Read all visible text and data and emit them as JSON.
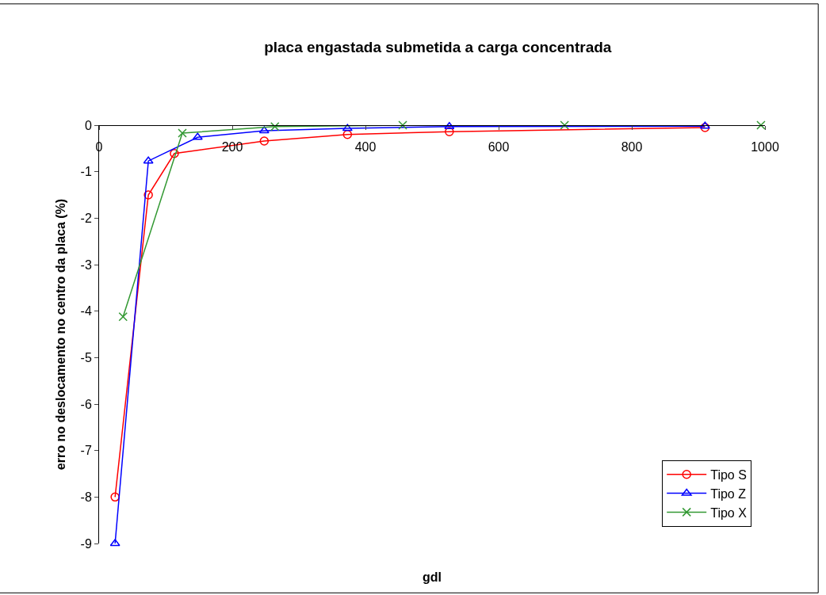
{
  "chart_data": {
    "type": "line",
    "title": "placa engastada submetida a carga concentrada",
    "xlabel": "gdl",
    "ylabel": "erro no deslocamento no centro da placa (%)",
    "xlim": [
      0,
      1000
    ],
    "xticks": [
      0,
      200,
      400,
      600,
      800,
      1000
    ],
    "ylim": [
      -9,
      0
    ],
    "yticks": [
      0,
      -1,
      -2,
      -3,
      -4,
      -5,
      -6,
      -7,
      -8,
      -9
    ],
    "legend": "bottom right",
    "series": [
      {
        "name": "Tipo S",
        "color": "#ff0000",
        "marker": "circle",
        "x": [
          24,
          74,
          113,
          248,
          373,
          526,
          910
        ],
        "values": [
          -8.0,
          -1.5,
          -0.61,
          -0.34,
          -0.2,
          -0.14,
          -0.05
        ]
      },
      {
        "name": "Tipo Z",
        "color": "#0000ff",
        "marker": "triangle",
        "x": [
          24,
          74,
          148,
          248,
          373,
          526,
          910
        ],
        "values": [
          -9.0,
          -0.77,
          -0.26,
          -0.12,
          -0.07,
          -0.03,
          -0.02
        ]
      },
      {
        "name": "Tipo X",
        "color": "#339933",
        "marker": "cross",
        "x": [
          36,
          125,
          264,
          456,
          699,
          994
        ],
        "values": [
          -4.12,
          -0.17,
          -0.03,
          0,
          0,
          0
        ]
      }
    ]
  }
}
